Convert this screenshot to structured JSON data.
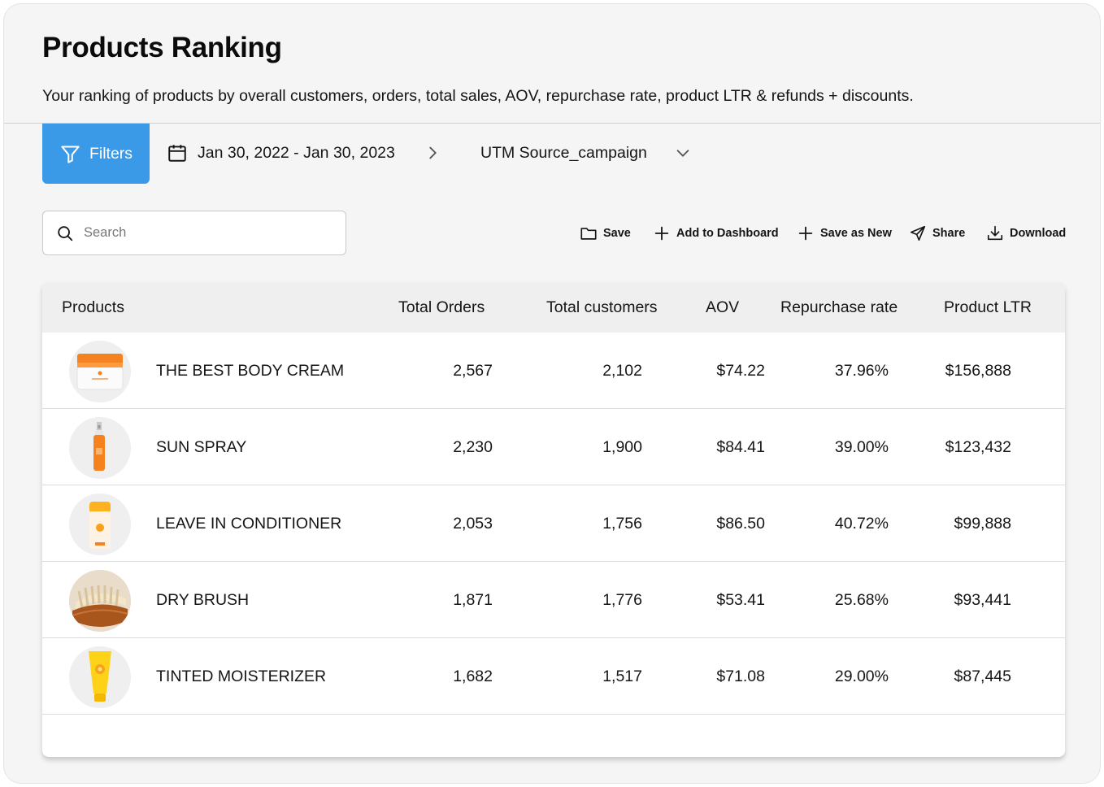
{
  "page": {
    "title": "Products Ranking",
    "subtitle": "Your ranking of products by overall customers, orders, total sales, AOV, repurchase rate, product LTR & refunds + discounts."
  },
  "toolbar": {
    "filters_label": "Filters",
    "date_range": "Jan 30, 2022 - Jan 30, 2023",
    "utm_select": "UTM Source_campaign",
    "accent_color": "#3b9ae8"
  },
  "search": {
    "placeholder": "Search",
    "value": ""
  },
  "actions": {
    "save": "Save",
    "add_to_dashboard": "Add to Dashboard",
    "save_as_new": "Save as New",
    "share": "Share",
    "download": "Download"
  },
  "table": {
    "columns": {
      "products": "Products",
      "total_orders": "Total Orders",
      "total_customers": "Total customers",
      "aov": "AOV",
      "repurchase_rate": "Repurchase rate",
      "product_ltr": "Product LTR"
    },
    "rows": [
      {
        "name": "THE BEST BODY CREAM",
        "orders": "2,567",
        "customers": "2,102",
        "aov": "$74.22",
        "repurchase": "37.96%",
        "ltr": "$156,888",
        "image": "body-cream-jar"
      },
      {
        "name": "SUN SPRAY",
        "orders": "2,230",
        "customers": "1,900",
        "aov": "$84.41",
        "repurchase": "39.00%",
        "ltr": "$123,432",
        "image": "spray-bottle"
      },
      {
        "name": "LEAVE IN CONDITIONER",
        "orders": "2,053",
        "customers": "1,756",
        "aov": "$86.50",
        "repurchase": "40.72%",
        "ltr": "$99,888",
        "image": "conditioner-bottle"
      },
      {
        "name": "DRY BRUSH",
        "orders": "1,871",
        "customers": "1,776",
        "aov": "$53.41",
        "repurchase": "25.68%",
        "ltr": "$93,441",
        "image": "dry-brush"
      },
      {
        "name": "TINTED MOISTERIZER",
        "orders": "1,682",
        "customers": "1,517",
        "aov": "$71.08",
        "repurchase": "29.00%",
        "ltr": "$87,445",
        "image": "moisturizer-tube"
      }
    ]
  }
}
